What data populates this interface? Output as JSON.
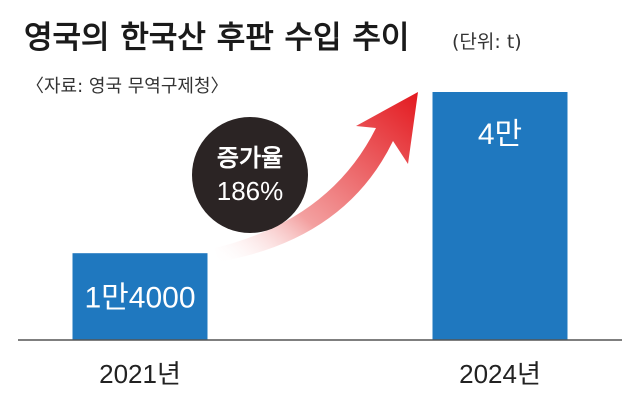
{
  "header": {
    "title": "영국의 한국산 후판 수입 추이",
    "unit": "(단위: t)",
    "source": "〈자료: 영국 무역구제청〉"
  },
  "callout": {
    "label": "증가율",
    "value": "186%"
  },
  "colors": {
    "bar": "#1f78bf",
    "circle": "#2b2424",
    "arrow": "#e3191f",
    "baseline": "#555555"
  },
  "chart_data": {
    "type": "bar",
    "title": "영국의 한국산 후판 수입 추이",
    "unit": "t",
    "categories": [
      "2021년",
      "2024년"
    ],
    "values": [
      14000,
      40000
    ],
    "value_labels": [
      "1만4000",
      "4만"
    ],
    "ylim": [
      0,
      40000
    ],
    "grid": false
  }
}
